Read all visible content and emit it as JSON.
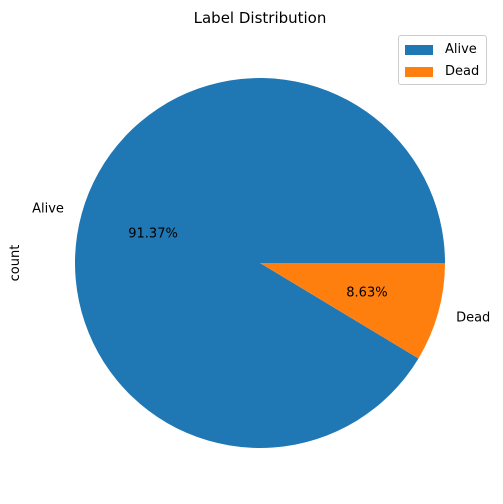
{
  "chart_data": {
    "type": "pie",
    "title": "Label Distribution",
    "ylabel": "count",
    "categories": [
      "Alive",
      "Dead"
    ],
    "values": [
      91.37,
      8.63
    ],
    "pct_labels": [
      "91.37%",
      "8.63%"
    ],
    "colors": [
      "#1f77b4",
      "#ff7f0e"
    ],
    "legend": {
      "placement": "top-right",
      "entries": [
        "Alive",
        "Dead"
      ]
    }
  }
}
